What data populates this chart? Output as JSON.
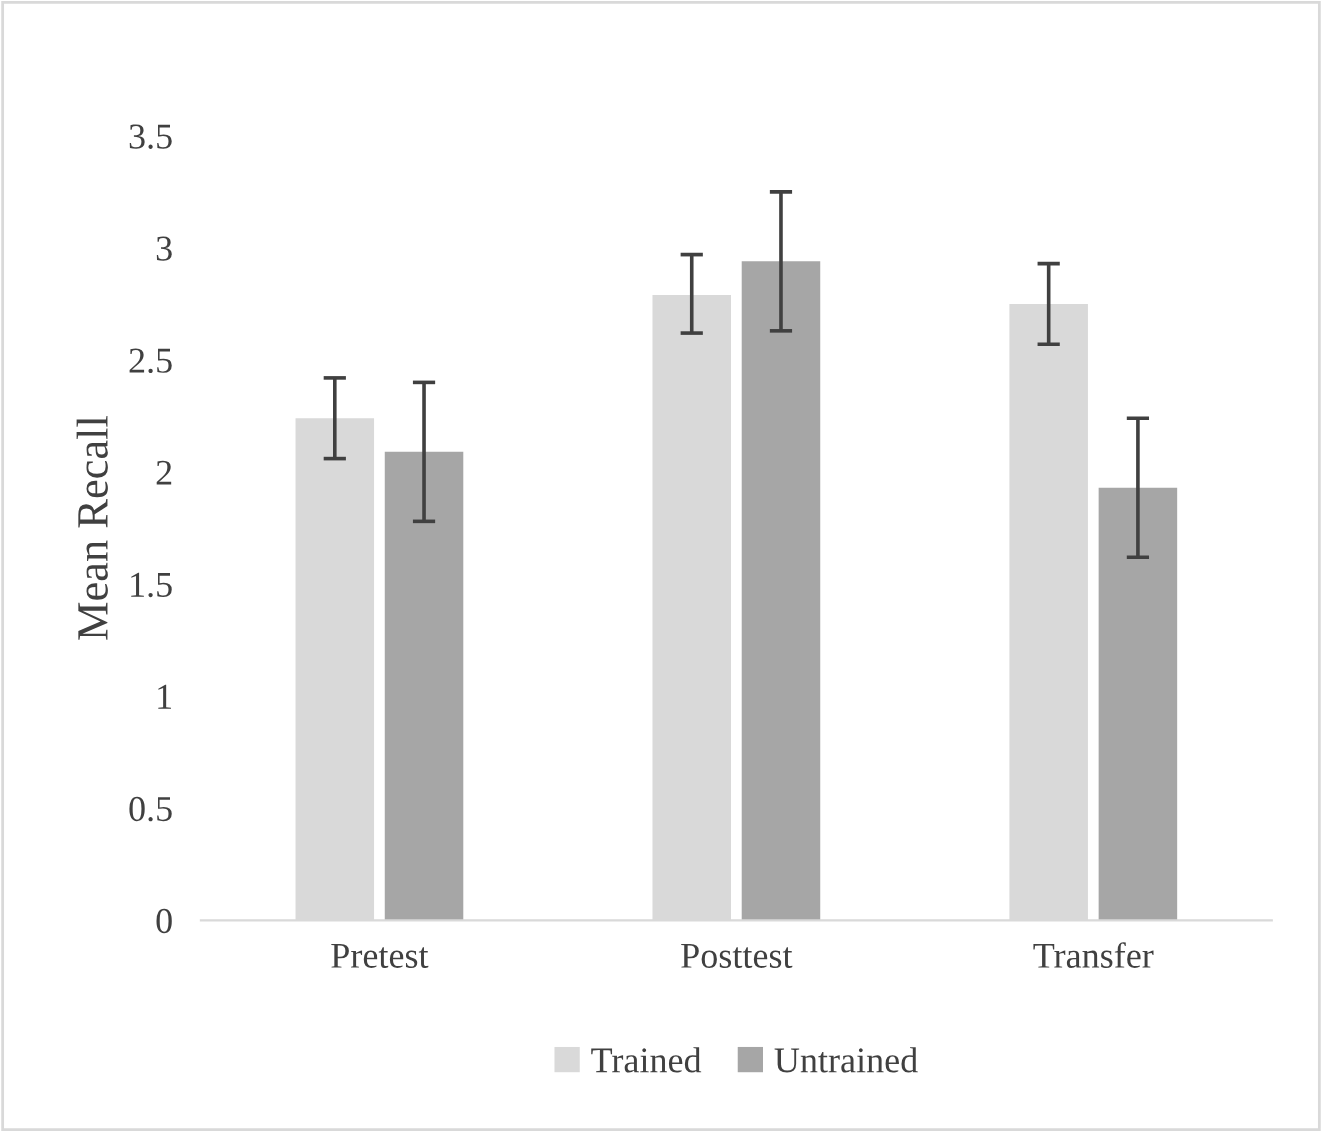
{
  "chart_data": {
    "type": "bar",
    "ylabel": "Mean Recall",
    "categories": [
      "Pretest",
      "Posttest",
      "Transfer"
    ],
    "series": [
      {
        "name": "Trained",
        "color": "#d9d9d9",
        "values": [
          2.24,
          2.79,
          2.75
        ],
        "errors": [
          [
            2.06,
            2.42
          ],
          [
            2.62,
            2.97
          ],
          [
            2.57,
            2.93
          ]
        ]
      },
      {
        "name": "Untrained",
        "color": "#a6a6a6",
        "values": [
          2.09,
          2.94,
          1.93
        ],
        "errors": [
          [
            1.78,
            2.4
          ],
          [
            2.63,
            3.25
          ],
          [
            1.62,
            2.24
          ]
        ]
      }
    ],
    "ylim": [
      0,
      3.5
    ],
    "yticks": [
      0,
      0.5,
      1,
      1.5,
      2,
      2.5,
      3,
      3.5
    ],
    "grid": false,
    "legend": "bottom"
  }
}
